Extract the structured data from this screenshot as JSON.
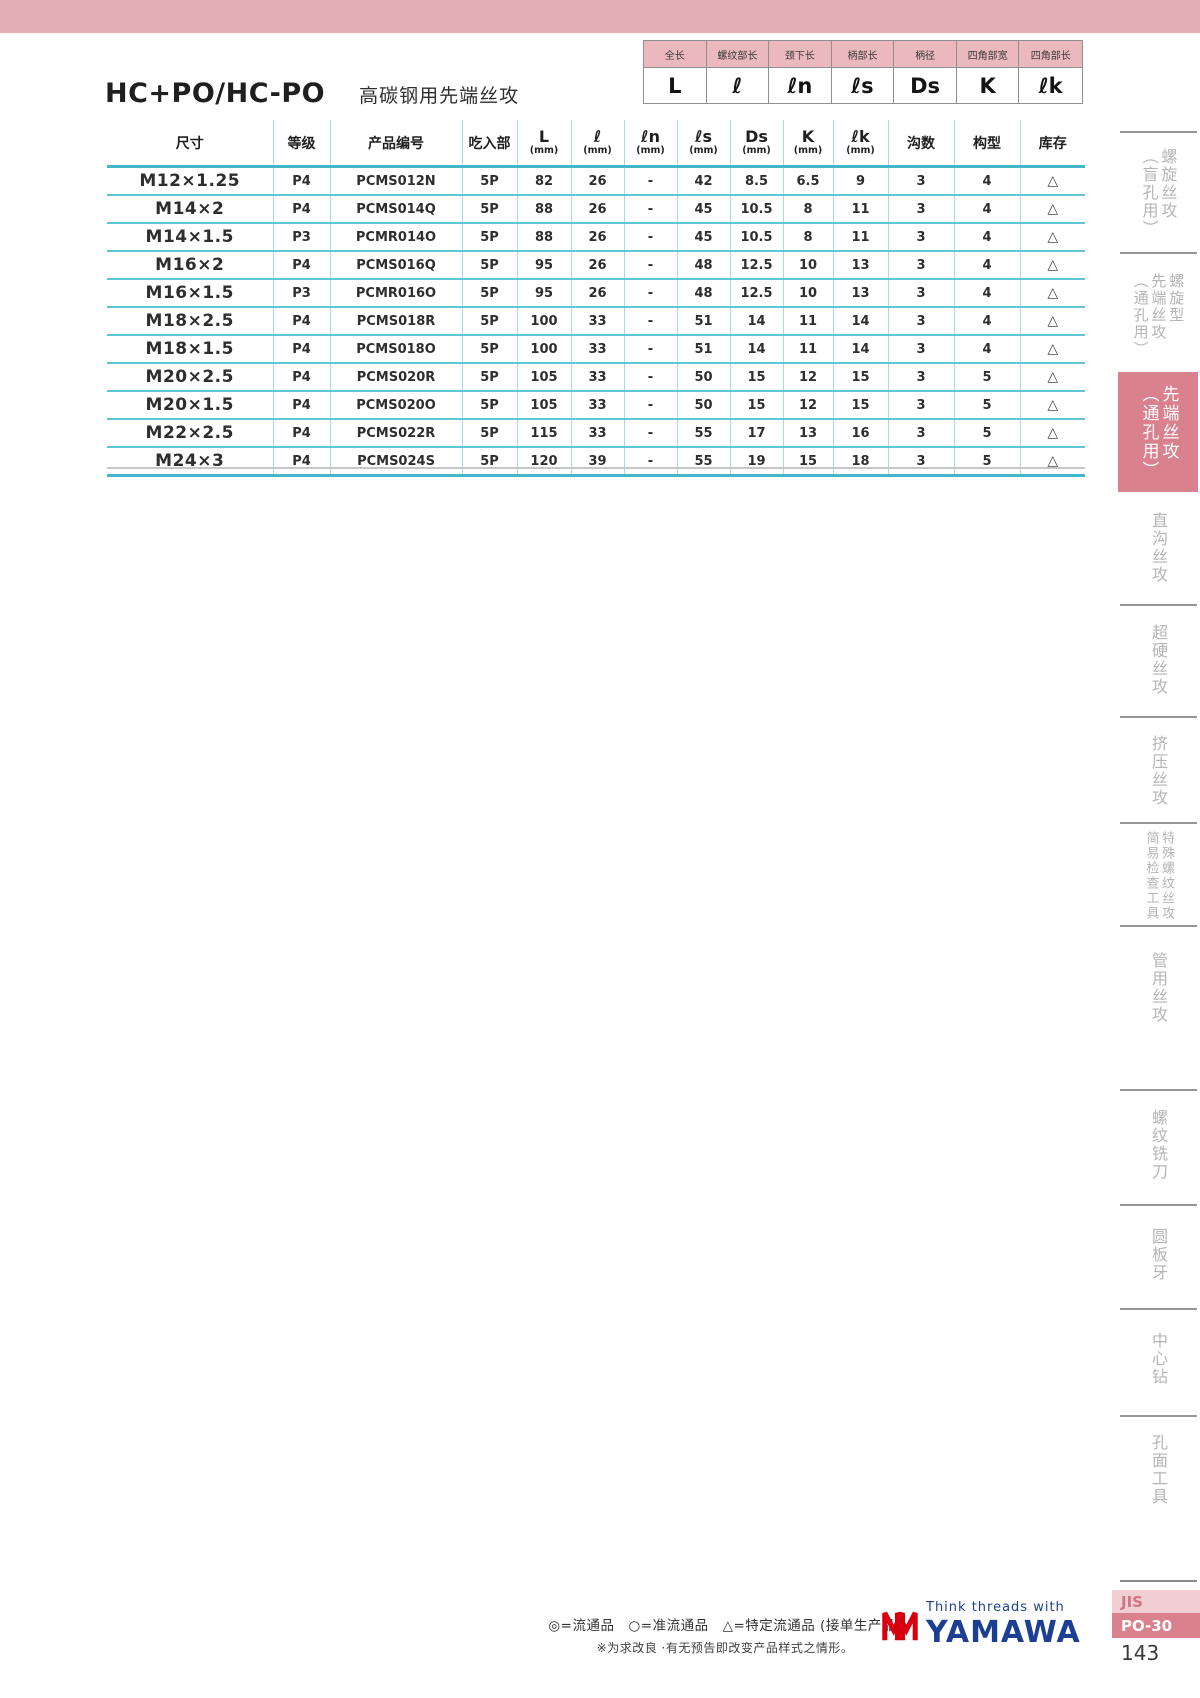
{
  "page": {
    "title": "HC+PO/HC-PO",
    "subtitle": "高碳钢用先端丝攻",
    "page_number": "143"
  },
  "legend": {
    "columns": [
      {
        "label": "全长",
        "symbol": "L"
      },
      {
        "label": "螺纹部长",
        "symbol": "ℓ"
      },
      {
        "label": "颈下长",
        "symbol": "ℓn"
      },
      {
        "label": "柄部长",
        "symbol": "ℓs"
      },
      {
        "label": "柄径",
        "symbol": "Ds"
      },
      {
        "label": "四角部宽",
        "symbol": "K"
      },
      {
        "label": "四角部长",
        "symbol": "ℓk"
      }
    ]
  },
  "table": {
    "headers": [
      {
        "label": "尺寸"
      },
      {
        "label": "等级"
      },
      {
        "label": "产品编号"
      },
      {
        "label": "吃入部"
      },
      {
        "label": "L",
        "sub": "(mm)"
      },
      {
        "label": "ℓ",
        "sub": "(mm)"
      },
      {
        "label": "ℓn",
        "sub": "(mm)"
      },
      {
        "label": "ℓs",
        "sub": "(mm)"
      },
      {
        "label": "Ds",
        "sub": "(mm)"
      },
      {
        "label": "K",
        "sub": "(mm)"
      },
      {
        "label": "ℓk",
        "sub": "(mm)"
      },
      {
        "label": "沟数"
      },
      {
        "label": "构型"
      },
      {
        "label": "库存"
      }
    ],
    "rows": [
      [
        "M12×1.25",
        "P4",
        "PCMS012N",
        "5P",
        "82",
        "26",
        "-",
        "42",
        "8.5",
        "6.5",
        "9",
        "3",
        "4",
        "△"
      ],
      [
        "M14×2",
        "P4",
        "PCMS014Q",
        "5P",
        "88",
        "26",
        "-",
        "45",
        "10.5",
        "8",
        "11",
        "3",
        "4",
        "△"
      ],
      [
        "M14×1.5",
        "P3",
        "PCMR014O",
        "5P",
        "88",
        "26",
        "-",
        "45",
        "10.5",
        "8",
        "11",
        "3",
        "4",
        "△"
      ],
      [
        "M16×2",
        "P4",
        "PCMS016Q",
        "5P",
        "95",
        "26",
        "-",
        "48",
        "12.5",
        "10",
        "13",
        "3",
        "4",
        "△"
      ],
      [
        "M16×1.5",
        "P3",
        "PCMR016O",
        "5P",
        "95",
        "26",
        "-",
        "48",
        "12.5",
        "10",
        "13",
        "3",
        "4",
        "△"
      ],
      [
        "M18×2.5",
        "P4",
        "PCMS018R",
        "5P",
        "100",
        "33",
        "-",
        "51",
        "14",
        "11",
        "14",
        "3",
        "4",
        "△"
      ],
      [
        "M18×1.5",
        "P4",
        "PCMS018O",
        "5P",
        "100",
        "33",
        "-",
        "51",
        "14",
        "11",
        "14",
        "3",
        "4",
        "△"
      ],
      [
        "M20×2.5",
        "P4",
        "PCMS020R",
        "5P",
        "105",
        "33",
        "-",
        "50",
        "15",
        "12",
        "15",
        "3",
        "5",
        "△"
      ],
      [
        "M20×1.5",
        "P4",
        "PCMS020O",
        "5P",
        "105",
        "33",
        "-",
        "50",
        "15",
        "12",
        "15",
        "3",
        "5",
        "△"
      ],
      [
        "M22×2.5",
        "P4",
        "PCMS022R",
        "5P",
        "115",
        "33",
        "-",
        "55",
        "17",
        "13",
        "16",
        "3",
        "5",
        "△"
      ],
      [
        "M24×3",
        "P4",
        "PCMS024S",
        "5P",
        "120",
        "39",
        "-",
        "55",
        "19",
        "15",
        "18",
        "3",
        "5",
        "△"
      ]
    ]
  },
  "sidebar": {
    "tabs": [
      {
        "id": "spiral-tap-blind",
        "active": false,
        "cols": [
          "螺旋丝攻",
          "（盲孔用）"
        ]
      },
      {
        "id": "spiral-point-tap-through",
        "active": false,
        "cols": [
          "螺旋型",
          "先端丝攻",
          "（通孔用）"
        ]
      },
      {
        "id": "point-tap-through",
        "active": true,
        "cols": [
          "先端丝攻",
          "（通孔用）"
        ]
      },
      {
        "id": "straight-flute-tap",
        "active": false,
        "cols": [
          "直沟丝攻"
        ]
      },
      {
        "id": "carbide-tap",
        "active": false,
        "cols": [
          "超硬丝攻"
        ]
      },
      {
        "id": "forming-tap",
        "active": false,
        "cols": [
          "挤压丝攻"
        ]
      },
      {
        "id": "special-thread-check-tools",
        "active": false,
        "cols": [
          "特殊螺纹丝攻",
          "简易检查工具"
        ]
      },
      {
        "id": "pipe-tap",
        "active": false,
        "cols": [
          "管用丝攻"
        ]
      },
      {
        "id": "thread-mill",
        "active": false,
        "cols": [
          "螺纹铣刀"
        ]
      },
      {
        "id": "round-die",
        "active": false,
        "cols": [
          "圆板牙"
        ]
      },
      {
        "id": "center-drill",
        "active": false,
        "cols": [
          "中心钻"
        ]
      },
      {
        "id": "hole-surface-tools",
        "active": false,
        "cols": [
          "孔面工具"
        ]
      }
    ]
  },
  "badge": {
    "jis": "JIS",
    "code": "PO-30"
  },
  "footer": {
    "stock_legend": "◎=流通品　○=准流通品　△=特定流通品 (接单生产品)",
    "note": "※为求改良 ·有无预告即改变产品样式之情形。",
    "tagline": "Think threads with",
    "brand": "YAMAWA"
  },
  "colors": {
    "top_bar_pink": "#e5aeb5",
    "legend_header_pink": "#eab8bd",
    "active_tab_rose": "#d9818d",
    "table_line_cyan": "#5fc5d7",
    "table_line_teal": "#44b6ca",
    "brand_blue": "#1c3f94",
    "brand_red": "#d6000f"
  }
}
